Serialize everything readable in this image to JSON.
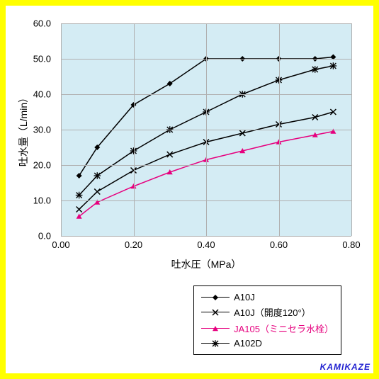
{
  "chart": {
    "type": "line",
    "background_color": "#d4ecf4",
    "grid_color": "#b0b0b0",
    "axis_color": "#000000",
    "y_axis": {
      "title": "吐水量（L/min）",
      "min": 0.0,
      "max": 60.0,
      "step": 10.0,
      "ticks": [
        "0.0",
        "10.0",
        "20.0",
        "30.0",
        "40.0",
        "50.0",
        "60.0"
      ],
      "title_fontsize": 14,
      "tick_fontsize": 13
    },
    "x_axis": {
      "title": "吐水圧（MPa）",
      "min": 0.0,
      "max": 0.8,
      "step": 0.2,
      "ticks": [
        "0.00",
        "0.20",
        "0.40",
        "0.60",
        "0.80"
      ],
      "title_fontsize": 14,
      "tick_fontsize": 13
    },
    "series": [
      {
        "id": "a10j",
        "label": "A10J",
        "color": "#000000",
        "label_color": "#000000",
        "marker": "diamond",
        "marker_fill": "#000000",
        "line_width": 1.5,
        "x": [
          0.05,
          0.1,
          0.2,
          0.3,
          0.4,
          0.5,
          0.6,
          0.7,
          0.75
        ],
        "y": [
          17.0,
          25.0,
          37.0,
          43.0,
          50.0,
          50.0,
          50.0,
          50.0,
          50.5
        ]
      },
      {
        "id": "a10j-120",
        "label": "A10J（開度120°）",
        "color": "#000000",
        "label_color": "#000000",
        "marker": "x",
        "marker_fill": "#000000",
        "line_width": 1.5,
        "x": [
          0.05,
          0.1,
          0.2,
          0.3,
          0.4,
          0.5,
          0.6,
          0.7,
          0.75
        ],
        "y": [
          7.5,
          12.5,
          18.5,
          23.0,
          26.5,
          29.0,
          31.5,
          33.5,
          35.0
        ]
      },
      {
        "id": "ja105",
        "label": "JA105（ミニセラ水栓）",
        "color": "#e6007e",
        "label_color": "#e6007e",
        "marker": "triangle",
        "marker_fill": "#e6007e",
        "line_width": 1.5,
        "x": [
          0.05,
          0.1,
          0.2,
          0.3,
          0.4,
          0.5,
          0.6,
          0.7,
          0.75
        ],
        "y": [
          5.5,
          9.5,
          14.0,
          18.0,
          21.5,
          24.0,
          26.5,
          28.5,
          29.5
        ]
      },
      {
        "id": "a102d",
        "label": "A102D",
        "color": "#000000",
        "label_color": "#000000",
        "marker": "asterisk",
        "marker_fill": "#000000",
        "line_width": 1.5,
        "x": [
          0.05,
          0.1,
          0.2,
          0.3,
          0.4,
          0.5,
          0.6,
          0.7,
          0.75
        ],
        "y": [
          11.5,
          17.0,
          24.0,
          30.0,
          35.0,
          40.0,
          44.0,
          47.0,
          48.0
        ]
      }
    ]
  },
  "watermark": "KAMIKAZE",
  "legend": {
    "border_color": "#000000",
    "background": "#ffffff",
    "fontsize": 13
  }
}
